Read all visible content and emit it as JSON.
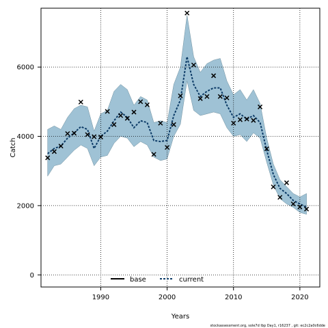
{
  "chart_data": {
    "type": "line",
    "xlabel": "Years",
    "ylabel": "Catch",
    "xlim": [
      1981,
      2023
    ],
    "ylim": [
      -350,
      7700
    ],
    "x_ticks": [
      1990,
      2000,
      2010,
      2020
    ],
    "y_ticks": [
      0,
      2000,
      4000,
      6000
    ],
    "grid": true,
    "legend_position": "bottom-center",
    "legend": [
      {
        "name": "base",
        "style": "solid",
        "color": "#000000"
      },
      {
        "name": "current",
        "style": "dashed",
        "color": "#0b3a66"
      }
    ],
    "band_color": "#9fc2d5",
    "years": [
      1982,
      1983,
      1984,
      1985,
      1986,
      1987,
      1988,
      1989,
      1990,
      1991,
      1992,
      1993,
      1994,
      1995,
      1996,
      1997,
      1998,
      1999,
      2000,
      2001,
      2002,
      2003,
      2004,
      2005,
      2006,
      2007,
      2008,
      2009,
      2010,
      2011,
      2012,
      2013,
      2014,
      2015,
      2016,
      2017,
      2018,
      2019,
      2020,
      2021
    ],
    "observed": [
      3380,
      3560,
      3720,
      4080,
      4090,
      4990,
      4050,
      3990,
      3980,
      4720,
      4340,
      4600,
      4520,
      4700,
      5000,
      4910,
      3480,
      4380,
      3680,
      4340,
      5170,
      7560,
      6060,
      5090,
      5150,
      5750,
      5150,
      5110,
      4380,
      4480,
      4500,
      4460,
      4850,
      3640,
      2540,
      2240,
      2660,
      2050,
      1960,
      1900
    ],
    "current": [
      3500,
      3650,
      3720,
      3950,
      4100,
      4280,
      4200,
      3650,
      4000,
      4150,
      4450,
      4700,
      4550,
      4250,
      4450,
      4400,
      3880,
      3850,
      3880,
      4600,
      5050,
      6300,
      5500,
      5150,
      5300,
      5400,
      5400,
      4900,
      4550,
      4650,
      4500,
      4600,
      4400,
      3600,
      2900,
      2500,
      2350,
      2150,
      2050,
      1950
    ],
    "upper": [
      4200,
      4300,
      4200,
      4550,
      4800,
      4900,
      4850,
      4150,
      4650,
      4750,
      5300,
      5500,
      5350,
      4900,
      5150,
      5050,
      4400,
      4450,
      4400,
      5500,
      6000,
      7500,
      6300,
      5850,
      6100,
      6200,
      6250,
      5600,
      5200,
      5350,
      5050,
      5350,
      4950,
      3950,
      3200,
      2750,
      2550,
      2350,
      2250,
      2350
    ],
    "lower": [
      2850,
      3150,
      3200,
      3400,
      3600,
      3750,
      3650,
      3150,
      3400,
      3450,
      3800,
      4000,
      3950,
      3700,
      3850,
      3750,
      3400,
      3300,
      3350,
      4000,
      4350,
      5600,
      4750,
      4600,
      4650,
      4700,
      4650,
      4250,
      4000,
      4050,
      3850,
      4100,
      3950,
      3250,
      2600,
      2200,
      2050,
      1950,
      1800,
      1750
    ]
  },
  "footer_text": "stockassessment.org, sole7d lbp Day1, r16237 , git: ec2c2a0c6dde"
}
